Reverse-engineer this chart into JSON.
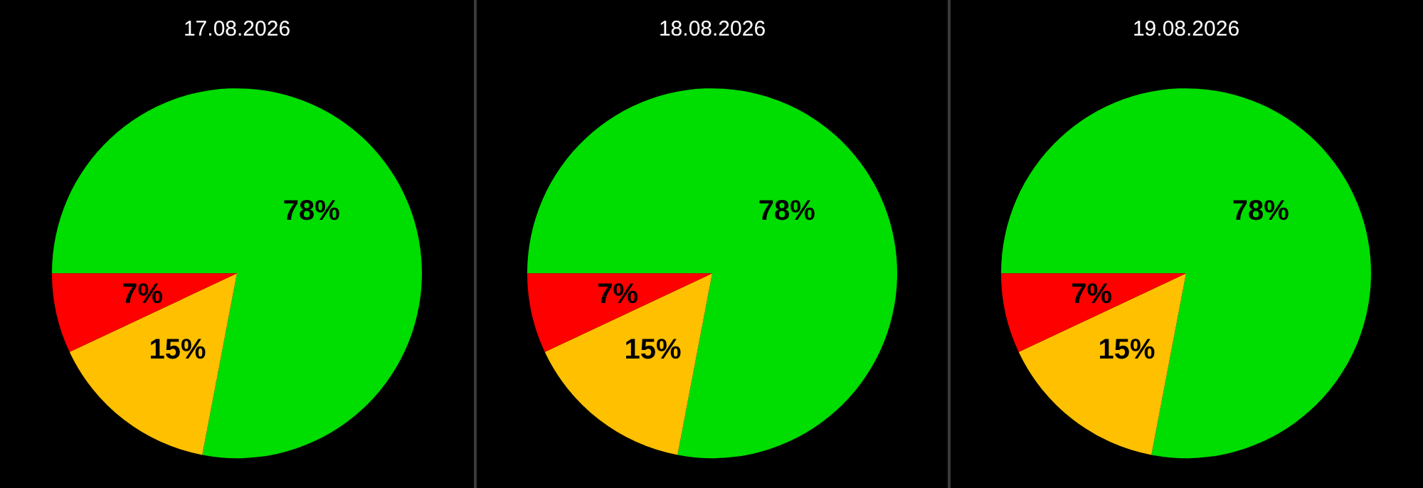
{
  "chart_data": [
    {
      "type": "pie",
      "title": "17.08.2026",
      "categories": [
        null,
        null,
        null
      ],
      "values": [
        78,
        15,
        7
      ],
      "colors": [
        "#00dd00",
        "#ffc000",
        "#ff0000"
      ],
      "value_labels": [
        "78%",
        "15%",
        "7%"
      ]
    },
    {
      "type": "pie",
      "title": "18.08.2026",
      "categories": [
        null,
        null,
        null
      ],
      "values": [
        78,
        15,
        7
      ],
      "colors": [
        "#00dd00",
        "#ffc000",
        "#ff0000"
      ],
      "value_labels": [
        "78%",
        "15%",
        "7%"
      ]
    },
    {
      "type": "pie",
      "title": "19.08.2026",
      "categories": [
        null,
        null,
        null
      ],
      "values": [
        78,
        15,
        7
      ],
      "colors": [
        "#00dd00",
        "#ffc000",
        "#ff0000"
      ],
      "value_labels": [
        "78%",
        "15%",
        "7%"
      ]
    }
  ]
}
